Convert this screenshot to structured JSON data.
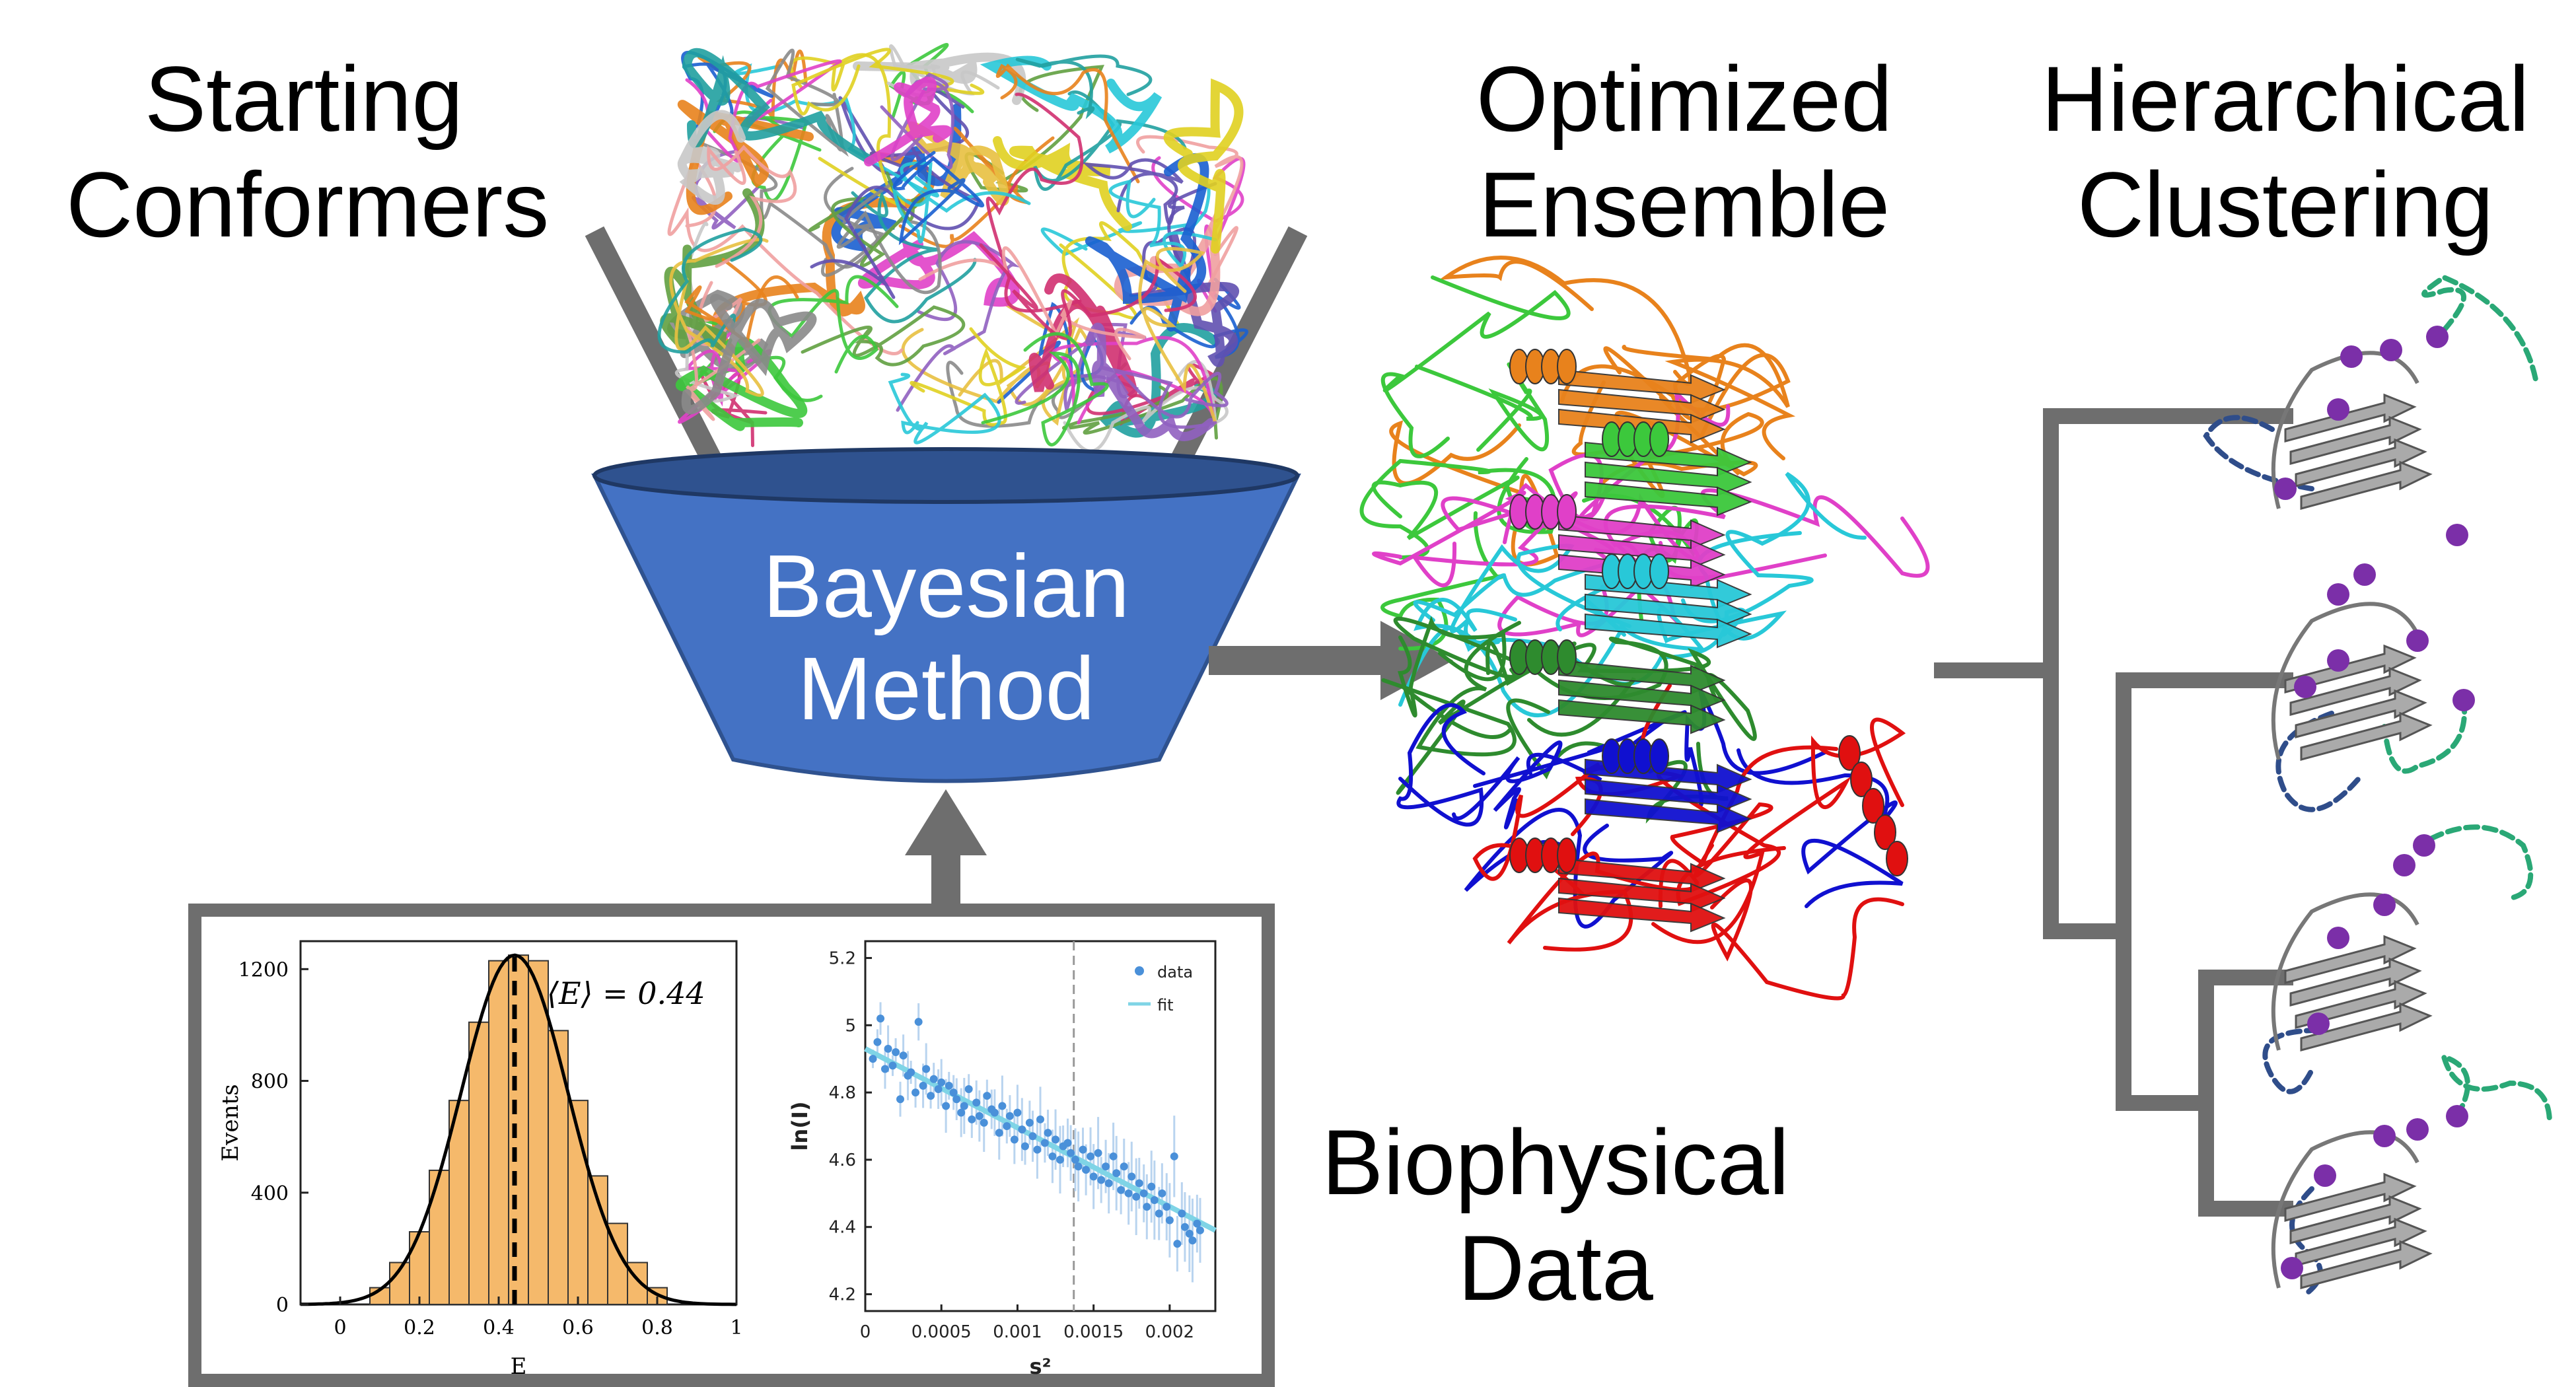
{
  "labels": {
    "starting_line1": "Starting",
    "starting_line2": "Conformers",
    "optimized_line1": "Optimized",
    "optimized_line2": "Ensemble",
    "hierarchical_line1": "Hierarchical",
    "hierarchical_line2": "Clustering",
    "biophysical_line1": "Biophysical",
    "biophysical_line2": "Data",
    "funnel_line1": "Bayesian",
    "funnel_line2": "Method"
  },
  "colors": {
    "funnel_fill": "#4472c4",
    "funnel_rim": "#2f528f",
    "arrow_gray": "#6e6e6e",
    "hist_bar": "#f5b96b",
    "scatter_point": "#4a90d9",
    "fit_line": "#7fd4e6",
    "cluster_gray": "#aaaaaa",
    "cluster_dot": "#7b2fa8",
    "loop_blue": "#2f4d8a",
    "loop_green": "#2aa876",
    "ensemble_orange": "#e8821c",
    "ensemble_green": "#3cc83c",
    "ensemble_magenta": "#e040c8",
    "ensemble_cyan": "#28c8d8",
    "ensemble_darkgreen": "#2e8b2e",
    "ensemble_blue": "#1010d0",
    "ensemble_red": "#e01010"
  },
  "chart_data": [
    {
      "type": "bar",
      "xlabel": "E",
      "ylabel": "Events",
      "annotation": "⟨E⟩ = 0.44",
      "xlim": [
        -0.1,
        1.0
      ],
      "ylim": [
        0,
        1300
      ],
      "xticks": [
        "0",
        "0.2",
        "0.4",
        "0.6",
        "0.8",
        "1"
      ],
      "yticks": [
        "0",
        "400",
        "800",
        "1200"
      ],
      "bin_edges": [
        0.075,
        0.125,
        0.175,
        0.225,
        0.275,
        0.325,
        0.375,
        0.425,
        0.475,
        0.525,
        0.575,
        0.625,
        0.675,
        0.725,
        0.775,
        0.825
      ],
      "values": [
        60,
        150,
        260,
        480,
        730,
        1010,
        1230,
        1250,
        1230,
        980,
        730,
        460,
        290,
        150,
        60
      ],
      "mean_line": 0.44,
      "fit": {
        "mu": 0.44,
        "sigma": 0.135,
        "peak": 1250
      }
    },
    {
      "type": "scatter",
      "xlabel": "s²",
      "ylabel": "ln(I)",
      "xlim": [
        0,
        0.0023
      ],
      "ylim": [
        4.15,
        5.25
      ],
      "xticks": [
        "0",
        "0.0005",
        "0.001",
        "0.0015",
        "0.002"
      ],
      "yticks": [
        "4.2",
        "4.4",
        "4.6",
        "4.8",
        "5",
        "5.2"
      ],
      "vline": 0.00137,
      "series": [
        {
          "name": "data",
          "x": [
            5e-05,
            8e-05,
            0.0001,
            0.00013,
            0.00015,
            0.00018,
            0.0002,
            0.00023,
            0.00025,
            0.00028,
            0.0003,
            0.00033,
            0.00035,
            0.00038,
            0.0004,
            0.00043,
            0.00045,
            0.00048,
            0.0005,
            0.00053,
            0.00055,
            0.00058,
            0.0006,
            0.00063,
            0.00065,
            0.00068,
            0.0007,
            0.00073,
            0.00075,
            0.00078,
            0.0008,
            0.00083,
            0.00085,
            0.00088,
            0.0009,
            0.00093,
            0.00095,
            0.00098,
            0.001,
            0.00103,
            0.00105,
            0.00108,
            0.0011,
            0.00113,
            0.00115,
            0.00118,
            0.0012,
            0.00123,
            0.00125,
            0.00128,
            0.0013,
            0.00133,
            0.00135,
            0.00138,
            0.0014,
            0.00143,
            0.00145,
            0.00148,
            0.0015,
            0.00153,
            0.00155,
            0.00158,
            0.0016,
            0.00163,
            0.00165,
            0.00168,
            0.0017,
            0.00173,
            0.00175,
            0.00178,
            0.0018,
            0.00183,
            0.00185,
            0.00188,
            0.0019,
            0.00193,
            0.00195,
            0.00198,
            0.002,
            0.00203,
            0.00205,
            0.00208,
            0.0021,
            0.00213,
            0.00215,
            0.00218,
            0.0022
          ],
          "y": [
            4.9,
            4.95,
            5.02,
            4.87,
            4.93,
            4.88,
            4.92,
            4.78,
            4.91,
            4.85,
            4.86,
            4.8,
            5.01,
            4.82,
            4.87,
            4.79,
            4.84,
            4.81,
            4.83,
            4.76,
            4.82,
            4.8,
            4.78,
            4.74,
            4.76,
            4.81,
            4.72,
            4.77,
            4.73,
            4.71,
            4.79,
            4.75,
            4.74,
            4.68,
            4.76,
            4.7,
            4.73,
            4.66,
            4.74,
            4.69,
            4.64,
            4.71,
            4.67,
            4.63,
            4.72,
            4.65,
            4.68,
            4.61,
            4.66,
            4.6,
            4.64,
            4.65,
            4.62,
            4.6,
            4.58,
            4.63,
            4.57,
            4.61,
            4.55,
            4.62,
            4.54,
            4.58,
            4.53,
            4.61,
            4.56,
            4.51,
            4.58,
            4.5,
            4.55,
            4.49,
            4.53,
            4.5,
            4.46,
            4.52,
            4.48,
            4.44,
            4.5,
            4.46,
            4.42,
            4.61,
            4.35,
            4.44,
            4.4,
            4.38,
            4.36,
            4.41,
            4.39
          ]
        },
        {
          "name": "fit",
          "x": [
            0.0,
            0.0023
          ],
          "y": [
            4.93,
            4.39
          ]
        }
      ]
    }
  ]
}
